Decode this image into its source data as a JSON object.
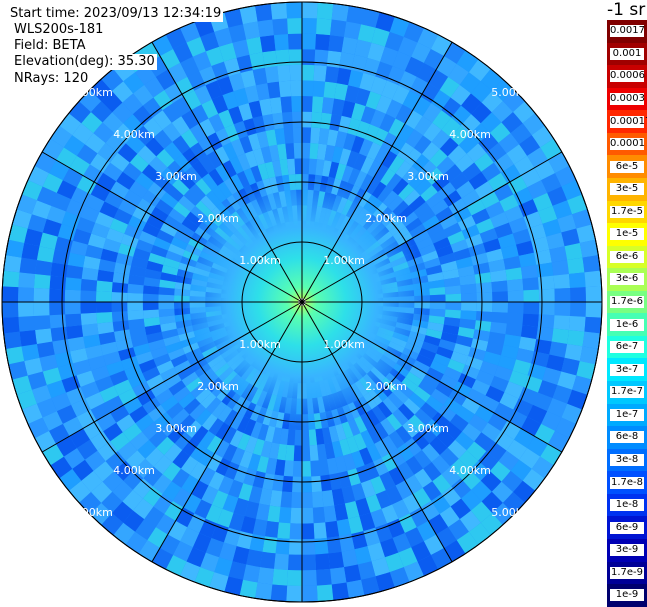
{
  "info": {
    "start_time": "Start time: 2023/09/13 12:34:19",
    "system": "WLS200s-181",
    "field": "Field: BETA",
    "elevation": "Elevation(deg): 35.30",
    "nrays": "NRays: 120"
  },
  "colorbar": {
    "unit": "-1 sr",
    "steps": [
      {
        "label": "0.0017",
        "color": "#800000"
      },
      {
        "label": "0.001",
        "color": "#a00000"
      },
      {
        "label": "0.0006",
        "color": "#c80000"
      },
      {
        "label": "0.0003",
        "color": "#ee0000"
      },
      {
        "label": "0.00017",
        "color": "#ff2800"
      },
      {
        "label": "0.0001",
        "color": "#ff5a00"
      },
      {
        "label": "6e-5",
        "color": "#ff8c00"
      },
      {
        "label": "3e-5",
        "color": "#ffb400"
      },
      {
        "label": "1.7e-5",
        "color": "#ffd700"
      },
      {
        "label": "1e-5",
        "color": "#ffff00"
      },
      {
        "label": "6e-6",
        "color": "#d7ff28"
      },
      {
        "label": "3e-6",
        "color": "#aaff55"
      },
      {
        "label": "1.7e-6",
        "color": "#78ff82"
      },
      {
        "label": "1e-6",
        "color": "#46ffb4"
      },
      {
        "label": "6e-7",
        "color": "#1effe1"
      },
      {
        "label": "3e-7",
        "color": "#00e8ff"
      },
      {
        "label": "1.7e-7",
        "color": "#00c8ff"
      },
      {
        "label": "1e-7",
        "color": "#00aaff"
      },
      {
        "label": "6e-8",
        "color": "#008cff"
      },
      {
        "label": "3e-8",
        "color": "#006eff"
      },
      {
        "label": "1.7e-8",
        "color": "#0050ff"
      },
      {
        "label": "1e-8",
        "color": "#0032f0"
      },
      {
        "label": "6e-9",
        "color": "#0014d2"
      },
      {
        "label": "3e-9",
        "color": "#0000b4"
      },
      {
        "label": "1.7e-9",
        "color": "#000096"
      },
      {
        "label": "1e-9",
        "color": "#00006e"
      }
    ]
  },
  "chart_data": {
    "type": "heatmap",
    "projection": "polar PPI",
    "field": "BETA",
    "elevation_deg": 35.3,
    "nrays": 120,
    "range_max_km": 5.0,
    "ring_values_km": [
      1,
      2,
      3,
      4,
      5
    ],
    "ring_labels": [
      "1.00km",
      "2.00km",
      "3.00km",
      "4.00km",
      "5.00km"
    ],
    "spoke_azimuths_deg": [
      0,
      30,
      60,
      90,
      120,
      150,
      180,
      210,
      240,
      270,
      300,
      330
    ],
    "value_profile_vs_range": [
      {
        "range_km": 0.2,
        "beta": "1.7e-6"
      },
      {
        "range_km": 0.6,
        "beta": "3e-7"
      },
      {
        "range_km": 1.0,
        "beta": "1.7e-7"
      },
      {
        "range_km": 2.0,
        "beta": "6e-8"
      },
      {
        "range_km": 3.0,
        "beta": "3e-8"
      },
      {
        "range_km": 5.0,
        "beta": "3e-8"
      }
    ],
    "colorbar_scale": "log",
    "colorbar_range": [
      "1e-9",
      "0.0017"
    ],
    "colorbar_unit": "-1 sr"
  }
}
